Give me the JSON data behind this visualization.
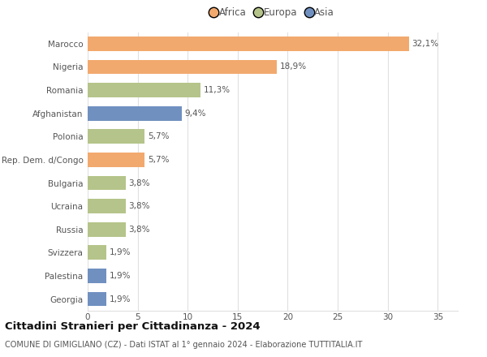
{
  "categories": [
    "Marocco",
    "Nigeria",
    "Romania",
    "Afghanistan",
    "Polonia",
    "Rep. Dem. d/Congo",
    "Bulgaria",
    "Ucraina",
    "Russia",
    "Svizzera",
    "Palestina",
    "Georgia"
  ],
  "values": [
    32.1,
    18.9,
    11.3,
    9.4,
    5.7,
    5.7,
    3.8,
    3.8,
    3.8,
    1.9,
    1.9,
    1.9
  ],
  "labels": [
    "32,1%",
    "18,9%",
    "11,3%",
    "9,4%",
    "5,7%",
    "5,7%",
    "3,8%",
    "3,8%",
    "3,8%",
    "1,9%",
    "1,9%",
    "1,9%"
  ],
  "continents": [
    "Africa",
    "Africa",
    "Europa",
    "Asia",
    "Europa",
    "Africa",
    "Europa",
    "Europa",
    "Europa",
    "Europa",
    "Asia",
    "Asia"
  ],
  "colors": {
    "Africa": "#F2A96E",
    "Europa": "#B5C48A",
    "Asia": "#7090C0"
  },
  "xlim": [
    0,
    37
  ],
  "xticks": [
    0,
    5,
    10,
    15,
    20,
    25,
    30,
    35
  ],
  "title": "Cittadini Stranieri per Cittadinanza - 2024",
  "subtitle": "COMUNE DI GIMIGLIANO (CZ) - Dati ISTAT al 1° gennaio 2024 - Elaborazione TUTTITALIA.IT",
  "background_color": "#ffffff",
  "grid_color": "#e0e0e0",
  "bar_height": 0.62,
  "label_fontsize": 7.5,
  "tick_fontsize": 7.5,
  "title_fontsize": 9.5,
  "subtitle_fontsize": 7.0,
  "legend_fontsize": 8.5
}
